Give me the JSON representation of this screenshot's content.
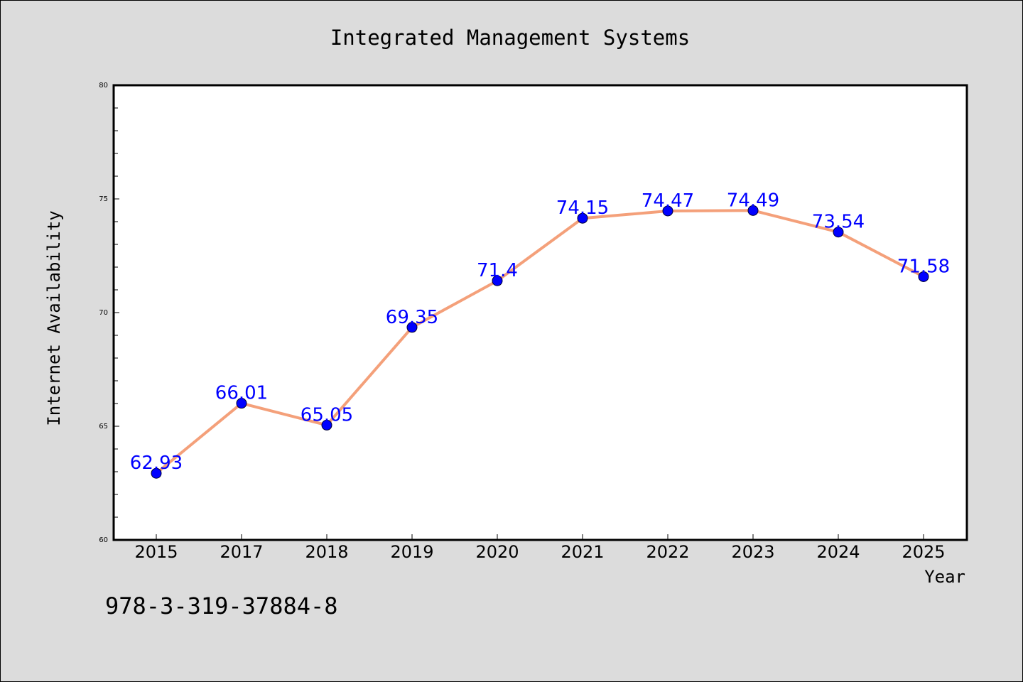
{
  "chart_data": {
    "type": "line",
    "title": "Integrated Management Systems",
    "xlabel": "Year",
    "ylabel": "Internet Availability",
    "categories": [
      "2015",
      "2017",
      "2018",
      "2019",
      "2020",
      "2021",
      "2022",
      "2023",
      "2024",
      "2025"
    ],
    "values": [
      62.93,
      66.01,
      65.05,
      69.35,
      71.4,
      74.15,
      74.47,
      74.49,
      73.54,
      71.58
    ],
    "data_labels": [
      "62.93",
      "66.01",
      "65.05",
      "69.35",
      "71.4",
      "74.15",
      "74.47",
      "74.49",
      "73.54",
      "71.58"
    ],
    "ylim": [
      60,
      80
    ],
    "yticks": [
      "60",
      "65",
      "70",
      "75",
      "80"
    ],
    "grid": false,
    "colors": {
      "line": "#f4a07a",
      "marker": "#0000ff",
      "label": "#0000ff"
    }
  },
  "footer": {
    "code": "978-3-319-37884-8"
  }
}
